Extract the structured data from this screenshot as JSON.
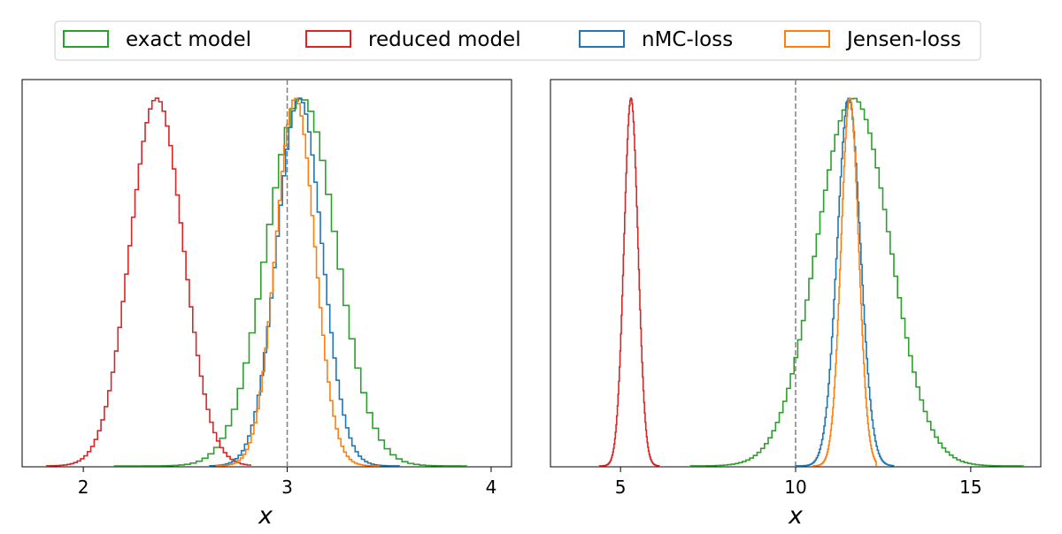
{
  "legend": {
    "entries": [
      {
        "label": "exact model",
        "color": "#2ca02c"
      },
      {
        "label": "reduced model",
        "color": "#d62728"
      },
      {
        "label": "nMC-loss",
        "color": "#1f77b4"
      },
      {
        "label": "Jensen-loss",
        "color": "#ff7f0e"
      }
    ]
  },
  "chart_data": [
    {
      "type": "histogram",
      "title": "",
      "xlabel": "x",
      "ylabel": "",
      "xlim": [
        1.7,
        4.1
      ],
      "xticks": [
        2,
        3,
        4
      ],
      "reference_line": {
        "x": 3,
        "style": "dashed",
        "color": "#808080"
      },
      "series": [
        {
          "name": "exact model",
          "color": "#2ca02c",
          "dist": {
            "mean": 3.07,
            "sd": 0.17,
            "min": 2.15,
            "max": 3.88
          }
        },
        {
          "name": "reduced model",
          "color": "#d62728",
          "dist": {
            "mean": 2.36,
            "sd": 0.13,
            "min": 1.82,
            "max": 2.82
          }
        },
        {
          "name": "nMC-loss",
          "color": "#1f77b4",
          "dist": {
            "mean": 3.06,
            "sd": 0.11,
            "min": 2.62,
            "max": 3.55
          }
        },
        {
          "name": "Jensen-loss",
          "color": "#ff7f0e",
          "dist": {
            "mean": 3.04,
            "sd": 0.095,
            "min": 2.65,
            "max": 3.45
          }
        }
      ]
    },
    {
      "type": "histogram",
      "title": "",
      "xlabel": "x",
      "ylabel": "",
      "xlim": [
        3.0,
        17.0
      ],
      "xticks": [
        5,
        10,
        15
      ],
      "reference_line": {
        "x": 10,
        "style": "dashed",
        "color": "#808080"
      },
      "series": [
        {
          "name": "exact model",
          "color": "#2ca02c",
          "dist": {
            "mean": 11.65,
            "sd": 1.05,
            "min": 7.0,
            "max": 16.5
          }
        },
        {
          "name": "reduced model",
          "color": "#d62728",
          "dist": {
            "mean": 5.3,
            "sd": 0.2,
            "min": 4.4,
            "max": 6.1
          }
        },
        {
          "name": "nMC-loss",
          "color": "#1f77b4",
          "dist": {
            "mean": 11.52,
            "sd": 0.33,
            "min": 10.0,
            "max": 12.8
          }
        },
        {
          "name": "Jensen-loss",
          "color": "#ff7f0e",
          "dist": {
            "mean": 11.55,
            "sd": 0.25,
            "min": 10.5,
            "max": 12.3
          }
        }
      ]
    }
  ]
}
